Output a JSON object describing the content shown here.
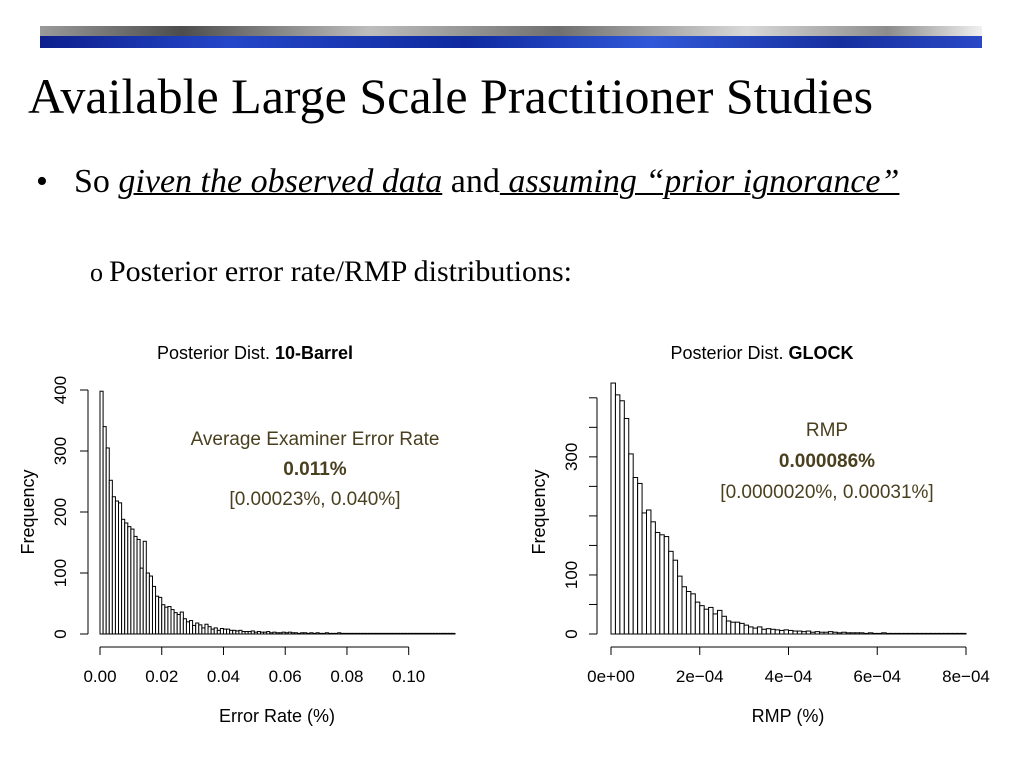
{
  "slide": {
    "title": "Available Large Scale Practitioner Studies",
    "bullet": {
      "marker": "•",
      "so": "So ",
      "given": "given the observed data",
      "and": " and",
      "assuming": " assuming “prior ignorance”"
    },
    "sub_bullet": {
      "marker": "o",
      "text": "Posterior error rate/RMP distributions:"
    }
  },
  "colors": {
    "annotation": "#4a4020",
    "bar_fill": "#ffffff",
    "bar_stroke": "#000000"
  },
  "chart_data": [
    {
      "type": "bar",
      "title_prefix": "Posterior Dist. ",
      "title_bold": "10-Barrel",
      "xlabel": "Error Rate (%)",
      "ylabel": "Frequency",
      "xlim": [
        0.0,
        0.115
      ],
      "ylim": [
        0,
        400
      ],
      "x_ticks": [
        0.0,
        0.02,
        0.04,
        0.06,
        0.08,
        0.1
      ],
      "x_tick_labels": [
        "0.00",
        "0.02",
        "0.04",
        "0.06",
        "0.08",
        "0.10"
      ],
      "y_ticks": [
        0,
        100,
        200,
        300,
        400
      ],
      "y_tick_labels": [
        "0",
        "100",
        "200",
        "300",
        "400"
      ],
      "bin_start": 0.0,
      "bin_width": 0.001,
      "values": [
        398,
        340,
        305,
        252,
        225,
        218,
        215,
        188,
        182,
        176,
        172,
        160,
        155,
        108,
        152,
        100,
        95,
        78,
        62,
        60,
        48,
        44,
        45,
        40,
        35,
        32,
        36,
        25,
        20,
        22,
        14,
        18,
        15,
        10,
        16,
        12,
        8,
        10,
        6,
        9,
        8,
        8,
        6,
        6,
        5,
        6,
        4,
        4,
        4,
        5,
        3,
        4,
        3,
        3,
        4,
        2,
        3,
        2,
        2,
        3,
        2,
        3,
        2,
        2,
        1,
        2,
        2,
        1,
        2,
        1,
        2,
        1,
        1,
        2,
        1,
        1,
        1,
        2,
        1,
        1,
        1,
        1,
        1,
        1,
        1,
        1,
        1,
        1,
        1,
        1,
        1,
        1,
        1,
        1,
        1,
        1,
        1,
        1,
        1,
        1,
        1,
        1,
        1,
        1,
        1,
        1,
        1,
        1,
        1,
        1,
        1,
        1,
        1,
        1,
        1
      ],
      "annotation": {
        "line1": "Average Examiner Error Rate",
        "line2": "0.011%",
        "line3": "[0.00023%, 0.040%]"
      }
    },
    {
      "type": "bar",
      "title_prefix": "Posterior Dist. ",
      "title_bold": "GLOCK",
      "xlabel": "RMP (%)",
      "ylabel": "Frequency",
      "xlim": [
        0.0,
        0.0008
      ],
      "ylim": [
        0,
        420
      ],
      "x_ticks": [
        0.0,
        0.0002,
        0.0004,
        0.0006,
        0.0008
      ],
      "x_tick_labels": [
        "0e+00",
        "2e−04",
        "4e−04",
        "6e−04",
        "8e−04"
      ],
      "y_ticks": [
        0,
        50,
        100,
        150,
        200,
        250,
        300,
        350,
        400
      ],
      "y_tick_labels": [
        "0",
        "",
        "100",
        "",
        "",
        "",
        "300",
        "",
        ""
      ],
      "bin_start": 0.0,
      "bin_width": 1e-05,
      "values": [
        425,
        405,
        395,
        365,
        305,
        265,
        255,
        205,
        210,
        190,
        172,
        168,
        165,
        140,
        125,
        98,
        80,
        72,
        68,
        54,
        48,
        42,
        45,
        34,
        40,
        30,
        22,
        20,
        20,
        18,
        15,
        12,
        10,
        12,
        8,
        9,
        8,
        7,
        6,
        7,
        6,
        5,
        5,
        4,
        5,
        3,
        4,
        3,
        3,
        4,
        3,
        2,
        3,
        2,
        2,
        2,
        2,
        1,
        2,
        1,
        1,
        2,
        1,
        1,
        1,
        1,
        1,
        1,
        1,
        1,
        1,
        1,
        1,
        1,
        1,
        1,
        1,
        1,
        1,
        1
      ],
      "annotation": {
        "line1": "RMP",
        "line2": "0.000086%",
        "line3": "[0.0000020%, 0.00031%]"
      }
    }
  ]
}
